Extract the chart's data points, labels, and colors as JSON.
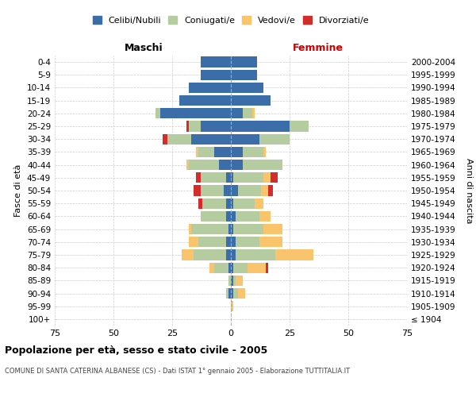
{
  "age_groups": [
    "100+",
    "95-99",
    "90-94",
    "85-89",
    "80-84",
    "75-79",
    "70-74",
    "65-69",
    "60-64",
    "55-59",
    "50-54",
    "45-49",
    "40-44",
    "35-39",
    "30-34",
    "25-29",
    "20-24",
    "15-19",
    "10-14",
    "5-9",
    "0-4"
  ],
  "birth_years": [
    "≤ 1904",
    "1905-1909",
    "1910-1914",
    "1915-1919",
    "1920-1924",
    "1925-1929",
    "1930-1934",
    "1935-1939",
    "1940-1944",
    "1945-1949",
    "1950-1954",
    "1955-1959",
    "1960-1964",
    "1965-1969",
    "1970-1974",
    "1975-1979",
    "1980-1984",
    "1985-1989",
    "1990-1994",
    "1995-1999",
    "2000-2004"
  ],
  "male": {
    "celibi": [
      0,
      0,
      1,
      0,
      1,
      2,
      2,
      1,
      2,
      2,
      3,
      2,
      5,
      7,
      17,
      13,
      30,
      22,
      18,
      13,
      13
    ],
    "coniugati": [
      0,
      0,
      1,
      1,
      6,
      14,
      12,
      16,
      11,
      10,
      10,
      11,
      13,
      7,
      10,
      5,
      2,
      0,
      0,
      0,
      0
    ],
    "vedovi": [
      0,
      0,
      0,
      0,
      2,
      5,
      4,
      1,
      0,
      0,
      0,
      0,
      1,
      1,
      0,
      0,
      0,
      0,
      0,
      0,
      0
    ],
    "divorziati": [
      0,
      0,
      0,
      0,
      0,
      0,
      0,
      0,
      0,
      2,
      3,
      2,
      0,
      0,
      2,
      1,
      0,
      0,
      0,
      0,
      0
    ]
  },
  "female": {
    "nubili": [
      0,
      0,
      1,
      1,
      1,
      2,
      2,
      1,
      2,
      1,
      3,
      1,
      5,
      5,
      12,
      25,
      5,
      17,
      14,
      11,
      11
    ],
    "coniugate": [
      0,
      0,
      2,
      1,
      6,
      17,
      10,
      13,
      10,
      9,
      10,
      13,
      17,
      9,
      13,
      8,
      4,
      0,
      0,
      0,
      0
    ],
    "vedove": [
      0,
      1,
      3,
      3,
      8,
      16,
      10,
      8,
      5,
      4,
      3,
      3,
      0,
      1,
      0,
      0,
      1,
      0,
      0,
      0,
      0
    ],
    "divorziate": [
      0,
      0,
      0,
      0,
      1,
      0,
      0,
      0,
      0,
      0,
      2,
      3,
      0,
      0,
      0,
      0,
      0,
      0,
      0,
      0,
      0
    ]
  },
  "colors": {
    "celibi": "#3B6EA8",
    "coniugati": "#B5CCA0",
    "vedovi": "#F9C46B",
    "divorziati": "#D42B2B"
  },
  "xlim": 75,
  "title": "Popolazione per età, sesso e stato civile - 2005",
  "subtitle": "COMUNE DI SANTA CATERINA ALBANESE (CS) - Dati ISTAT 1° gennaio 2005 - Elaborazione TUTTITALIA.IT",
  "ylabel_left": "Fasce di età",
  "ylabel_right": "Anni di nascita",
  "legend_labels": [
    "Celibi/Nubili",
    "Coniugati/e",
    "Vedovi/e",
    "Divorziati/e"
  ],
  "maschi_label": "Maschi",
  "femmine_label": "Femmine",
  "maschi_color": "#000000",
  "femmine_color": "#cc0000"
}
